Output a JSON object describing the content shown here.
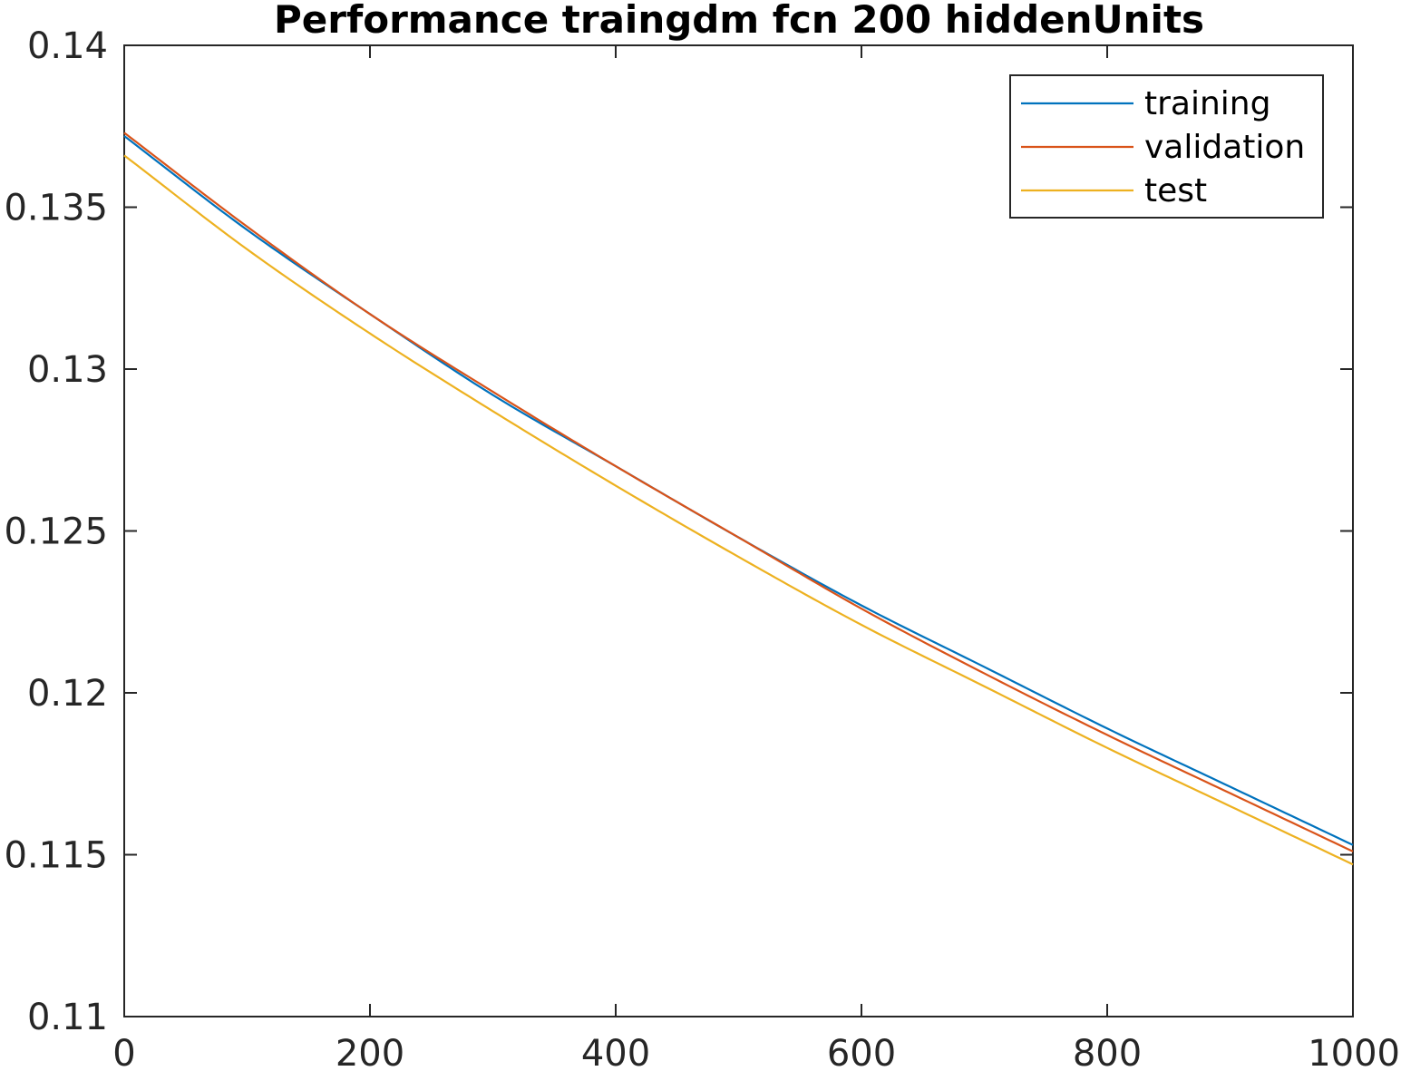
{
  "chart_data": {
    "type": "line",
    "title": "Performance traingdm fcn 200 hiddenUnits",
    "xlabel": "",
    "ylabel": "",
    "xlim": [
      0,
      1000
    ],
    "ylim": [
      0.11,
      0.14
    ],
    "x_ticks": [
      0,
      200,
      400,
      600,
      800,
      1000
    ],
    "x_tick_labels": [
      "0",
      "200",
      "400",
      "600",
      "800",
      "1000"
    ],
    "y_ticks": [
      0.11,
      0.115,
      0.12,
      0.125,
      0.13,
      0.135,
      0.14
    ],
    "y_tick_labels": [
      "0.11",
      "0.115",
      "0.12",
      "0.125",
      "0.13",
      "0.135",
      "0.14"
    ],
    "grid": false,
    "legend_position": "top-right",
    "x": [
      0,
      100,
      200,
      300,
      400,
      500,
      600,
      700,
      800,
      900,
      1000
    ],
    "series": [
      {
        "name": "training",
        "color": "#0072BD",
        "values": [
          0.1372,
          0.1343,
          0.1317,
          0.1292,
          0.127,
          0.1248,
          0.1227,
          0.1208,
          0.1189,
          0.1171,
          0.1153
        ]
      },
      {
        "name": "validation",
        "color": "#D95319",
        "values": [
          0.1373,
          0.1344,
          0.1317,
          0.1293,
          0.127,
          0.1248,
          0.1226,
          0.1206,
          0.1187,
          0.1169,
          0.1151
        ]
      },
      {
        "name": "test",
        "color": "#EDB120",
        "values": [
          0.1366,
          0.1337,
          0.1311,
          0.1287,
          0.1264,
          0.1242,
          0.1221,
          0.1202,
          0.1183,
          0.1165,
          0.1147
        ]
      }
    ]
  }
}
